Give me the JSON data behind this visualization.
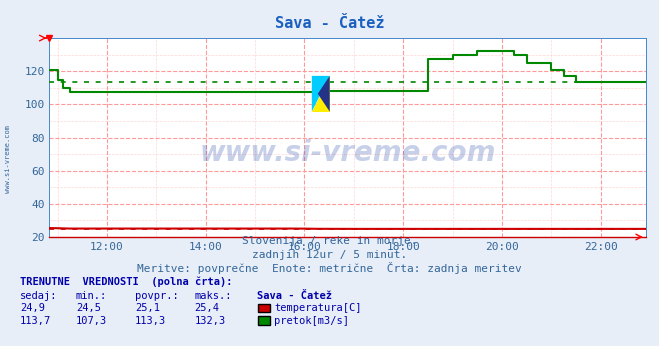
{
  "title": "Sava - Čatež",
  "title_color": "#1a60c0",
  "bg_color": "#e8eef8",
  "plot_bg_color": "#ffffff",
  "title_bg_color": "#e8eef8",
  "grid_color_major": "#ff9999",
  "grid_color_minor": "#ffcccc",
  "ylim": [
    20,
    140
  ],
  "yticks": [
    20,
    40,
    60,
    80,
    100,
    120
  ],
  "xlim_hours": [
    10.833,
    22.916
  ],
  "xtick_hours": [
    12,
    14,
    16,
    18,
    20,
    22
  ],
  "xtick_labels": [
    "12:00",
    "14:00",
    "16:00",
    "18:00",
    "20:00",
    "22:00"
  ],
  "temp_color": "#cc0000",
  "pretok_color": "#008800",
  "watermark": "www.si-vreme.com",
  "watermark_color": "#2244aa",
  "watermark_alpha": 0.25,
  "subtitle1": "Slovenija / reke in morje.",
  "subtitle2": "zadnjih 12ur / 5 minut.",
  "subtitle3": "Meritve: povprečne  Enote: metrične  Črta: zadnja meritev",
  "subtitle_color": "#336699",
  "tick_color": "#336699",
  "left_label": "www.si-vreme.com",
  "left_label_color": "#336699",
  "stat_label_color": "#0000aa",
  "stat_value_color": "#0000aa",
  "temp_avg": 25.1,
  "pretok_avg": 113.3,
  "temp_sedaj": 24.9,
  "temp_min": 24.5,
  "temp_povpr": 25.1,
  "temp_maks": 25.4,
  "pretok_sedaj": 113.7,
  "pretok_min": 107.3,
  "pretok_povpr": 113.3,
  "pretok_maks": 132.3,
  "pretok_x": [
    10.833,
    11.0,
    11.0,
    11.1,
    11.1,
    11.25,
    11.25,
    13.5,
    13.5,
    16.5,
    16.5,
    18.5,
    18.5,
    19.0,
    19.0,
    19.5,
    19.5,
    20.25,
    20.25,
    20.5,
    20.5,
    21.0,
    21.0,
    21.25,
    21.25,
    21.5,
    21.5,
    22.916
  ],
  "pretok_y": [
    121.0,
    121.0,
    115.0,
    115.0,
    110.0,
    110.0,
    107.3,
    107.3,
    107.5,
    107.5,
    108.0,
    108.0,
    127.5,
    127.5,
    130.0,
    130.0,
    132.3,
    132.3,
    130.0,
    130.0,
    125.0,
    125.0,
    121.0,
    121.0,
    117.0,
    117.0,
    113.7,
    113.7
  ],
  "temp_x": [
    10.833,
    11.0,
    11.25,
    15.75,
    16.0,
    16.25,
    17.0,
    22.916
  ],
  "temp_y": [
    25.4,
    25.3,
    25.1,
    25.1,
    25.05,
    24.95,
    24.9,
    24.9
  ]
}
